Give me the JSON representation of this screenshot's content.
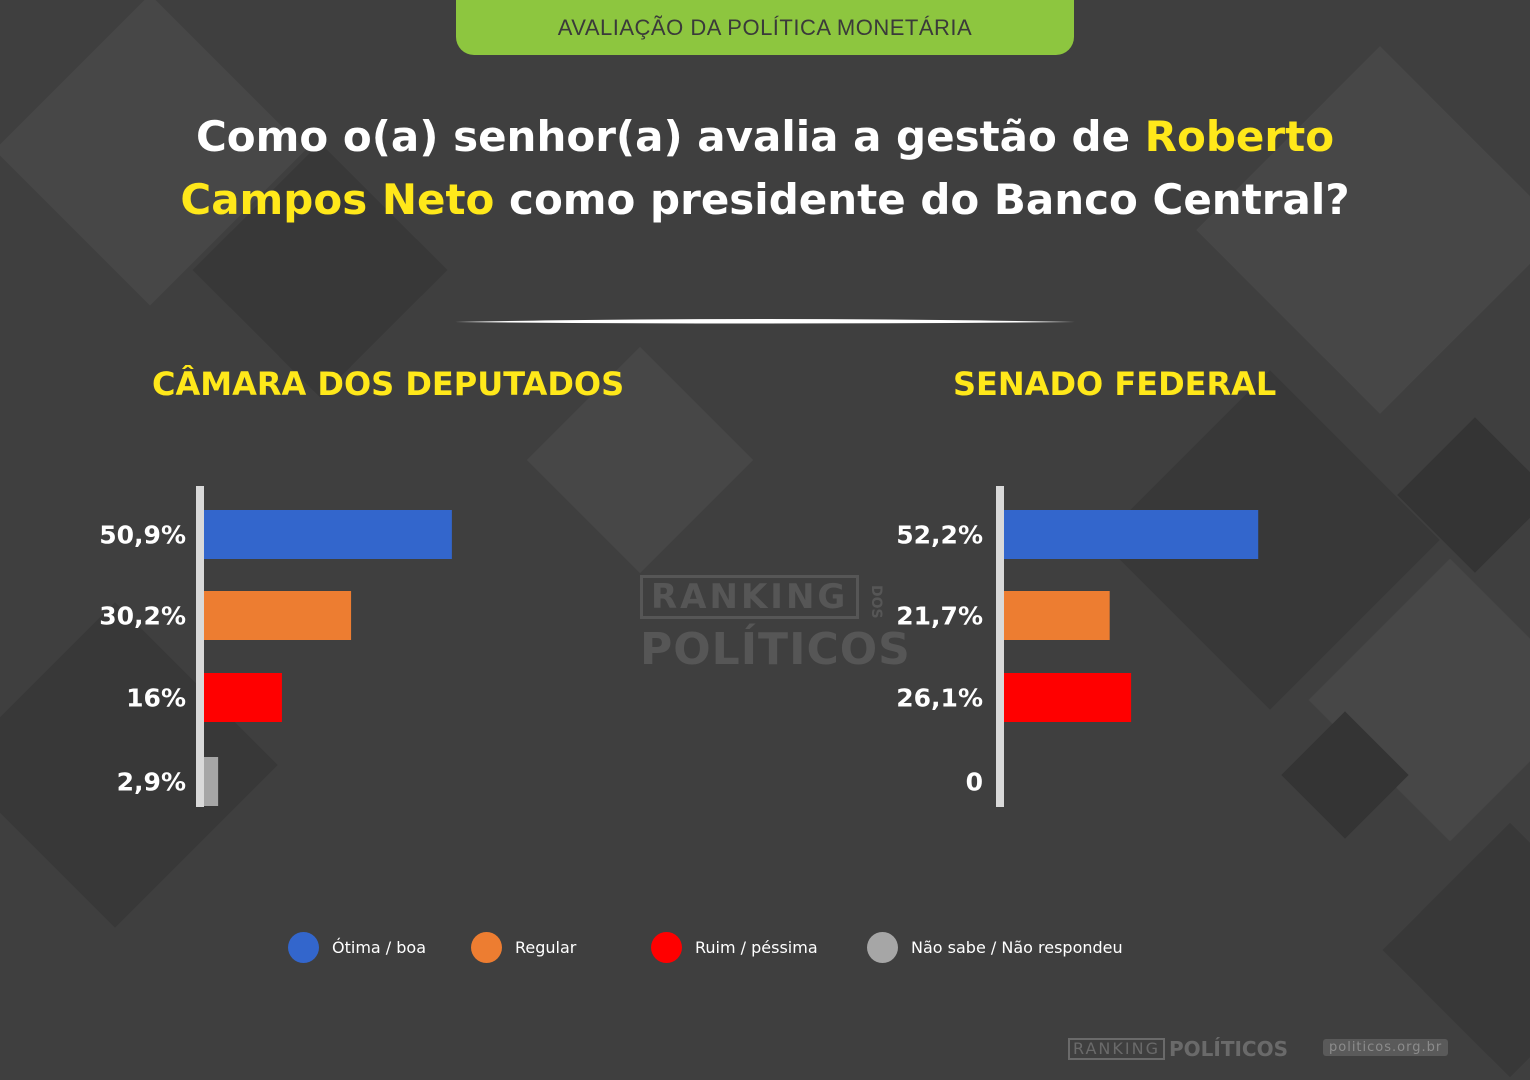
{
  "header": {
    "tab_label": "AVALIAÇÃO DA POLÍTICA MONETÁRIA",
    "question_part1": "Como o(a) senhor(a) avalia a gestão de ",
    "question_highlight": "Roberto Campos Neto",
    "question_part2": " como presidente do Banco Central?"
  },
  "colors": {
    "background": "#3f3f3f",
    "tab": "#8dc63f",
    "highlight": "#ffe81a",
    "otima_boa": "#3366cc",
    "regular": "#ed7d31",
    "ruim_pessima": "#ff0000",
    "nao_sabe": "#a6a6a6"
  },
  "chart_data": [
    {
      "type": "bar",
      "orientation": "horizontal",
      "title": "CÂMARA DOS DEPUTADOS",
      "categories": [
        "Ótima / boa",
        "Regular",
        "Ruim / péssima",
        "Não sabe / Não respondeu"
      ],
      "values": [
        50.9,
        30.2,
        16,
        2.9
      ],
      "labels": [
        "50,9%",
        "30,2%",
        "16%",
        "2,9%"
      ],
      "xlim": [
        0,
        100
      ]
    },
    {
      "type": "bar",
      "orientation": "horizontal",
      "title": "SENADO FEDERAL",
      "categories": [
        "Ótima / boa",
        "Regular",
        "Ruim / péssima",
        "Não sabe / Não respondeu"
      ],
      "values": [
        52.2,
        21.7,
        26.1,
        0
      ],
      "labels": [
        "52,2%",
        "21,7%",
        "26,1%",
        "0"
      ],
      "xlim": [
        0,
        100
      ]
    }
  ],
  "legend": [
    {
      "label": "Ótima / boa",
      "color": "#3366cc"
    },
    {
      "label": "Regular",
      "color": "#ed7d31"
    },
    {
      "label": "Ruim / péssima",
      "color": "#ff0000"
    },
    {
      "label": "Não sabe / Não respondeu",
      "color": "#a6a6a6"
    }
  ],
  "watermark": {
    "top": "RANKING",
    "side": "DOS",
    "bottom": "POLÍTICOS"
  },
  "footer": {
    "brand_ranking": "RANKING",
    "brand_politicos": "POLÍTICOS",
    "url": "politicos.org.br"
  }
}
